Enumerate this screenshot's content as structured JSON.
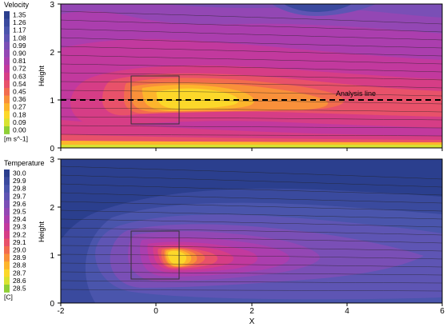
{
  "chart_data": [
    {
      "type": "heatmap",
      "colorbar": {
        "title": "Velocity",
        "unit": "[m s^-1]",
        "ticks": [
          "1.35",
          "1.26",
          "1.17",
          "1.08",
          "0.99",
          "0.90",
          "0.81",
          "0.72",
          "0.63",
          "0.54",
          "0.45",
          "0.36",
          "0.27",
          "0.18",
          "0.09",
          "0.00"
        ],
        "colors": [
          "#2b3f8e",
          "#3a4a9e",
          "#4a55ac",
          "#5e55b4",
          "#7a4fb6",
          "#9347b4",
          "#ab3eae",
          "#c2399e",
          "#d63d86",
          "#e8516a",
          "#f26c4e",
          "#f9903a",
          "#fdb52c",
          "#fcd82a",
          "#d8e331",
          "#8fcf36"
        ]
      },
      "ylabel": "Height",
      "xlim": [
        -2,
        6
      ],
      "ylim": [
        0,
        3
      ],
      "yticks": [
        "0",
        "1",
        "2",
        "3"
      ],
      "annotation": "Analysis line",
      "analysis_line_y": 1.0,
      "box": {
        "x": [
          -0.5,
          0.5
        ],
        "y": [
          0.5,
          1.5
        ]
      }
    },
    {
      "type": "heatmap",
      "colorbar": {
        "title": "Temperature",
        "unit": "[C]",
        "ticks": [
          "30.0",
          "29.9",
          "29.8",
          "29.7",
          "29.6",
          "29.5",
          "29.4",
          "29.3",
          "29.2",
          "29.1",
          "29.0",
          "28.9",
          "28.8",
          "28.7",
          "28.6",
          "28.5"
        ],
        "colors": [
          "#2b3f8e",
          "#3a4a9e",
          "#4a55ac",
          "#5e55b4",
          "#7a4fb6",
          "#9347b4",
          "#ab3eae",
          "#c2399e",
          "#d63d86",
          "#e8516a",
          "#f26c4e",
          "#f9903a",
          "#fdb52c",
          "#fcd82a",
          "#d8e331",
          "#8fcf36"
        ]
      },
      "xlabel": "X",
      "ylabel": "Height",
      "xlim": [
        -2,
        6
      ],
      "ylim": [
        0,
        3
      ],
      "xticks": [
        "-2",
        "0",
        "2",
        "4",
        "6"
      ],
      "yticks": [
        "0",
        "1",
        "2",
        "3"
      ],
      "box": {
        "x": [
          -0.5,
          0.5
        ],
        "y": [
          0.5,
          1.5
        ]
      }
    }
  ]
}
